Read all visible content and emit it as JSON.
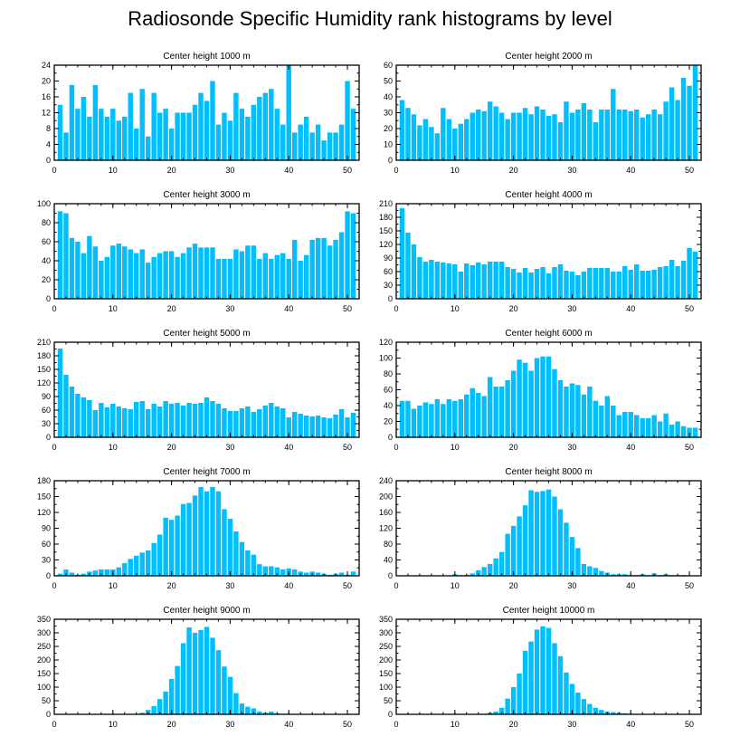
{
  "title": "Radiosonde Specific Humidity rank histograms by level",
  "colors": {
    "bar": "#00bfff",
    "axis": "#000000",
    "background": "#ffffff"
  },
  "chart_data": [
    {
      "type": "bar",
      "title": "Center height 1000 m",
      "xlim": [
        0,
        52
      ],
      "ylim": [
        0,
        24
      ],
      "xticks": [
        0,
        10,
        20,
        30,
        40,
        50
      ],
      "yticks": [
        0,
        4,
        8,
        12,
        16,
        20,
        24
      ],
      "categories": [
        1,
        2,
        3,
        4,
        5,
        6,
        7,
        8,
        9,
        10,
        11,
        12,
        13,
        14,
        15,
        16,
        17,
        18,
        19,
        20,
        21,
        22,
        23,
        24,
        25,
        26,
        27,
        28,
        29,
        30,
        31,
        32,
        33,
        34,
        35,
        36,
        37,
        38,
        39,
        40,
        41,
        42,
        43,
        44,
        45,
        46,
        47,
        48,
        49,
        50,
        51
      ],
      "values": [
        14,
        7,
        19,
        13,
        16,
        11,
        19,
        13,
        11,
        13,
        10,
        11,
        17,
        8,
        18,
        6,
        17,
        12,
        13,
        8,
        12,
        12,
        12,
        14,
        17,
        15,
        20,
        9,
        12,
        10,
        17,
        13,
        11,
        14,
        16,
        17,
        18,
        13,
        9,
        24,
        7,
        9,
        11,
        7,
        9,
        5,
        7,
        7,
        9,
        20,
        13
      ]
    },
    {
      "type": "bar",
      "title": "Center height 2000 m",
      "xlim": [
        0,
        52
      ],
      "ylim": [
        0,
        60
      ],
      "xticks": [
        0,
        10,
        20,
        30,
        40,
        50
      ],
      "yticks": [
        0,
        10,
        20,
        30,
        40,
        50,
        60
      ],
      "categories": [
        1,
        2,
        3,
        4,
        5,
        6,
        7,
        8,
        9,
        10,
        11,
        12,
        13,
        14,
        15,
        16,
        17,
        18,
        19,
        20,
        21,
        22,
        23,
        24,
        25,
        26,
        27,
        28,
        29,
        30,
        31,
        32,
        33,
        34,
        35,
        36,
        37,
        38,
        39,
        40,
        41,
        42,
        43,
        44,
        45,
        46,
        47,
        48,
        49,
        50,
        51
      ],
      "values": [
        38,
        33,
        29,
        22,
        26,
        21,
        17,
        33,
        26,
        20,
        23,
        26,
        30,
        32,
        31,
        37,
        34,
        30,
        26,
        30,
        30,
        33,
        29,
        34,
        32,
        28,
        29,
        24,
        37,
        30,
        32,
        36,
        32,
        24,
        32,
        32,
        45,
        32,
        32,
        31,
        32,
        27,
        29,
        32,
        29,
        37,
        46,
        38,
        52,
        47,
        60
      ]
    },
    {
      "type": "bar",
      "title": "Center height 3000 m",
      "xlim": [
        0,
        52
      ],
      "ylim": [
        0,
        100
      ],
      "xticks": [
        0,
        10,
        20,
        30,
        40,
        50
      ],
      "yticks": [
        0,
        20,
        40,
        60,
        80,
        100
      ],
      "categories": [
        1,
        2,
        3,
        4,
        5,
        6,
        7,
        8,
        9,
        10,
        11,
        12,
        13,
        14,
        15,
        16,
        17,
        18,
        19,
        20,
        21,
        22,
        23,
        24,
        25,
        26,
        27,
        28,
        29,
        30,
        31,
        32,
        33,
        34,
        35,
        36,
        37,
        38,
        39,
        40,
        41,
        42,
        43,
        44,
        45,
        46,
        47,
        48,
        49,
        50,
        51
      ],
      "values": [
        92,
        90,
        64,
        60,
        48,
        66,
        55,
        40,
        44,
        56,
        58,
        55,
        52,
        48,
        52,
        38,
        44,
        48,
        50,
        50,
        44,
        48,
        54,
        58,
        54,
        54,
        54,
        42,
        42,
        42,
        52,
        50,
        56,
        56,
        42,
        48,
        42,
        46,
        48,
        42,
        62,
        40,
        46,
        62,
        64,
        64,
        56,
        62,
        70,
        92,
        90
      ]
    },
    {
      "type": "bar",
      "title": "Center height 4000 m",
      "xlim": [
        0,
        52
      ],
      "ylim": [
        0,
        210
      ],
      "xticks": [
        0,
        10,
        20,
        30,
        40,
        50
      ],
      "yticks": [
        0,
        30,
        60,
        90,
        120,
        150,
        180,
        210
      ],
      "categories": [
        1,
        2,
        3,
        4,
        5,
        6,
        7,
        8,
        9,
        10,
        11,
        12,
        13,
        14,
        15,
        16,
        17,
        18,
        19,
        20,
        21,
        22,
        23,
        24,
        25,
        26,
        27,
        28,
        29,
        30,
        31,
        32,
        33,
        34,
        35,
        36,
        37,
        38,
        39,
        40,
        41,
        42,
        43,
        44,
        45,
        46,
        47,
        48,
        49,
        50,
        51
      ],
      "values": [
        200,
        146,
        120,
        92,
        82,
        86,
        82,
        80,
        78,
        76,
        60,
        78,
        74,
        80,
        76,
        82,
        82,
        82,
        70,
        66,
        58,
        68,
        58,
        66,
        70,
        56,
        70,
        76,
        62,
        60,
        52,
        60,
        68,
        68,
        68,
        68,
        60,
        60,
        72,
        64,
        76,
        62,
        62,
        64,
        70,
        72,
        86,
        72,
        84,
        112,
        104
      ]
    },
    {
      "type": "bar",
      "title": "Center height 5000 m",
      "xlim": [
        0,
        52
      ],
      "ylim": [
        0,
        210
      ],
      "xticks": [
        0,
        10,
        20,
        30,
        40,
        50
      ],
      "yticks": [
        0,
        30,
        60,
        90,
        120,
        150,
        180,
        210
      ],
      "categories": [
        1,
        2,
        3,
        4,
        5,
        6,
        7,
        8,
        9,
        10,
        11,
        12,
        13,
        14,
        15,
        16,
        17,
        18,
        19,
        20,
        21,
        22,
        23,
        24,
        25,
        26,
        27,
        28,
        29,
        30,
        31,
        32,
        33,
        34,
        35,
        36,
        37,
        38,
        39,
        40,
        41,
        42,
        43,
        44,
        45,
        46,
        47,
        48,
        49,
        50,
        51
      ],
      "values": [
        196,
        138,
        112,
        96,
        88,
        82,
        60,
        76,
        66,
        74,
        68,
        64,
        62,
        78,
        80,
        62,
        74,
        68,
        80,
        74,
        76,
        70,
        76,
        74,
        76,
        88,
        80,
        74,
        64,
        58,
        58,
        64,
        68,
        56,
        62,
        70,
        76,
        68,
        64,
        44,
        56,
        52,
        48,
        46,
        48,
        44,
        42,
        50,
        62,
        44,
        54
      ]
    },
    {
      "type": "bar",
      "title": "Center height 6000 m",
      "xlim": [
        0,
        52
      ],
      "ylim": [
        0,
        120
      ],
      "xticks": [
        0,
        10,
        20,
        30,
        40,
        50
      ],
      "yticks": [
        0,
        20,
        40,
        60,
        80,
        100,
        120
      ],
      "categories": [
        1,
        2,
        3,
        4,
        5,
        6,
        7,
        8,
        9,
        10,
        11,
        12,
        13,
        14,
        15,
        16,
        17,
        18,
        19,
        20,
        21,
        22,
        23,
        24,
        25,
        26,
        27,
        28,
        29,
        30,
        31,
        32,
        33,
        34,
        35,
        36,
        37,
        38,
        39,
        40,
        41,
        42,
        43,
        44,
        45,
        46,
        47,
        48,
        49,
        50,
        51
      ],
      "values": [
        46,
        46,
        36,
        40,
        44,
        42,
        48,
        42,
        48,
        46,
        48,
        54,
        62,
        56,
        52,
        76,
        64,
        64,
        72,
        84,
        98,
        94,
        84,
        100,
        102,
        102,
        86,
        72,
        64,
        68,
        66,
        54,
        64,
        46,
        40,
        52,
        40,
        28,
        32,
        32,
        28,
        24,
        24,
        28,
        20,
        30,
        16,
        20,
        14,
        12,
        12
      ]
    },
    {
      "type": "bar",
      "title": "Center height 7000 m",
      "xlim": [
        0,
        52
      ],
      "ylim": [
        0,
        180
      ],
      "xticks": [
        0,
        10,
        20,
        30,
        40,
        50
      ],
      "yticks": [
        0,
        30,
        60,
        90,
        120,
        150,
        180
      ],
      "categories": [
        1,
        2,
        3,
        4,
        5,
        6,
        7,
        8,
        9,
        10,
        11,
        12,
        13,
        14,
        15,
        16,
        17,
        18,
        19,
        20,
        21,
        22,
        23,
        24,
        25,
        26,
        27,
        28,
        29,
        30,
        31,
        32,
        33,
        34,
        35,
        36,
        37,
        38,
        39,
        40,
        41,
        42,
        43,
        44,
        45,
        46,
        47,
        48,
        49,
        50,
        51
      ],
      "values": [
        4,
        12,
        6,
        2,
        4,
        8,
        10,
        12,
        12,
        12,
        16,
        24,
        32,
        38,
        44,
        48,
        62,
        78,
        110,
        106,
        114,
        136,
        138,
        152,
        168,
        160,
        168,
        160,
        126,
        108,
        84,
        64,
        48,
        40,
        22,
        18,
        18,
        16,
        12,
        14,
        12,
        8,
        6,
        8,
        6,
        4,
        2,
        4,
        6,
        2,
        8
      ]
    },
    {
      "type": "bar",
      "title": "Center height 8000 m",
      "xlim": [
        0,
        52
      ],
      "ylim": [
        0,
        240
      ],
      "xticks": [
        0,
        10,
        20,
        30,
        40,
        50
      ],
      "yticks": [
        0,
        40,
        80,
        120,
        160,
        200,
        240
      ],
      "categories": [
        1,
        2,
        3,
        4,
        5,
        6,
        7,
        8,
        9,
        10,
        11,
        12,
        13,
        14,
        15,
        16,
        17,
        18,
        19,
        20,
        21,
        22,
        23,
        24,
        25,
        26,
        27,
        28,
        29,
        30,
        31,
        32,
        33,
        34,
        35,
        36,
        37,
        38,
        39,
        40,
        41,
        42,
        43,
        44,
        45,
        46,
        47,
        48,
        49,
        50,
        51
      ],
      "values": [
        0,
        0,
        0,
        0,
        0,
        0,
        0,
        0,
        0,
        4,
        2,
        2,
        6,
        14,
        22,
        30,
        44,
        60,
        106,
        126,
        150,
        178,
        216,
        212,
        214,
        218,
        200,
        168,
        134,
        98,
        70,
        30,
        24,
        20,
        12,
        8,
        4,
        4,
        4,
        2,
        2,
        4,
        2,
        6,
        2,
        4,
        2,
        2,
        2,
        0,
        0
      ]
    },
    {
      "type": "bar",
      "title": "Center height 9000 m",
      "xlim": [
        0,
        52
      ],
      "ylim": [
        0,
        350
      ],
      "xticks": [
        0,
        10,
        20,
        30,
        40,
        50
      ],
      "yticks": [
        0,
        50,
        100,
        150,
        200,
        250,
        300,
        350
      ],
      "categories": [
        1,
        2,
        3,
        4,
        5,
        6,
        7,
        8,
        9,
        10,
        11,
        12,
        13,
        14,
        15,
        16,
        17,
        18,
        19,
        20,
        21,
        22,
        23,
        24,
        25,
        26,
        27,
        28,
        29,
        30,
        31,
        32,
        33,
        34,
        35,
        36,
        37,
        38,
        39,
        40,
        41,
        42,
        43,
        44,
        45,
        46,
        47,
        48,
        49,
        50,
        51
      ],
      "values": [
        0,
        0,
        0,
        0,
        0,
        0,
        0,
        0,
        0,
        0,
        0,
        0,
        0,
        2,
        6,
        16,
        30,
        56,
        84,
        130,
        178,
        262,
        320,
        300,
        310,
        322,
        282,
        236,
        176,
        138,
        78,
        40,
        28,
        22,
        10,
        6,
        10,
        4,
        2,
        0,
        0,
        0,
        0,
        0,
        0,
        0,
        0,
        0,
        0,
        0,
        0
      ]
    },
    {
      "type": "bar",
      "title": "Center height 10000 m",
      "xlim": [
        0,
        52
      ],
      "ylim": [
        0,
        350
      ],
      "xticks": [
        0,
        10,
        20,
        30,
        40,
        50
      ],
      "yticks": [
        0,
        50,
        100,
        150,
        200,
        250,
        300,
        350
      ],
      "categories": [
        1,
        2,
        3,
        4,
        5,
        6,
        7,
        8,
        9,
        10,
        11,
        12,
        13,
        14,
        15,
        16,
        17,
        18,
        19,
        20,
        21,
        22,
        23,
        24,
        25,
        26,
        27,
        28,
        29,
        30,
        31,
        32,
        33,
        34,
        35,
        36,
        37,
        38,
        39,
        40,
        41,
        42,
        43,
        44,
        45,
        46,
        47,
        48,
        49,
        50,
        51
      ],
      "values": [
        0,
        0,
        0,
        0,
        0,
        0,
        0,
        0,
        0,
        0,
        0,
        0,
        0,
        0,
        2,
        6,
        10,
        24,
        58,
        100,
        150,
        234,
        268,
        312,
        324,
        318,
        262,
        214,
        154,
        112,
        80,
        56,
        38,
        24,
        16,
        10,
        8,
        6,
        4,
        2,
        0,
        0,
        0,
        0,
        0,
        0,
        0,
        0,
        0,
        0,
        0
      ]
    }
  ]
}
